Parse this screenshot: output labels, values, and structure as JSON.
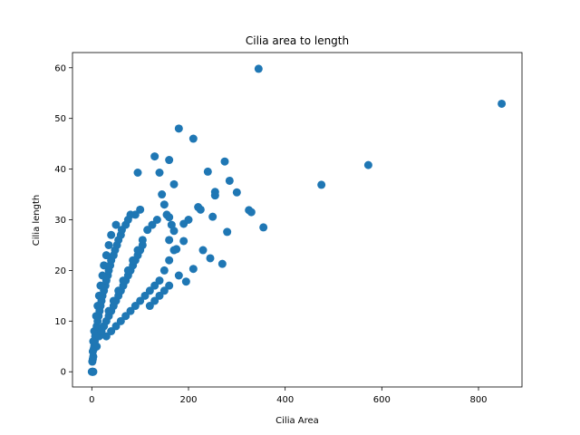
{
  "chart_data": {
    "type": "scatter",
    "title": "Cilia area to length",
    "xlabel": "Cilia Area",
    "ylabel": "Cilia length",
    "xlim": [
      -40,
      890
    ],
    "ylim": [
      -3,
      63
    ],
    "xticks": [
      0,
      200,
      400,
      600,
      800
    ],
    "yticks": [
      0,
      10,
      20,
      30,
      40,
      50,
      60
    ],
    "grid": false,
    "legend": "none",
    "marker_color": "#1f77b4",
    "series": [
      {
        "points": [
          [
            0,
            0
          ],
          [
            1,
            0
          ],
          [
            2,
            0
          ],
          [
            3,
            0
          ],
          [
            1,
            2
          ],
          [
            2,
            2.5
          ],
          [
            3,
            3
          ],
          [
            2,
            4
          ],
          [
            4,
            4.5
          ],
          [
            5,
            5
          ],
          [
            3,
            6
          ],
          [
            6,
            6
          ],
          [
            7,
            7
          ],
          [
            5,
            8
          ],
          [
            8,
            8
          ],
          [
            10,
            9
          ],
          [
            12,
            10
          ],
          [
            9,
            11
          ],
          [
            14,
            11
          ],
          [
            16,
            12
          ],
          [
            12,
            13
          ],
          [
            18,
            13
          ],
          [
            20,
            14
          ],
          [
            15,
            15
          ],
          [
            22,
            15
          ],
          [
            25,
            16
          ],
          [
            18,
            17
          ],
          [
            28,
            17
          ],
          [
            30,
            18
          ],
          [
            22,
            19
          ],
          [
            33,
            19
          ],
          [
            35,
            20
          ],
          [
            25,
            21
          ],
          [
            38,
            21
          ],
          [
            40,
            22
          ],
          [
            30,
            23
          ],
          [
            45,
            23
          ],
          [
            48,
            24
          ],
          [
            35,
            25
          ],
          [
            52,
            25
          ],
          [
            55,
            26
          ],
          [
            40,
            27
          ],
          [
            60,
            27
          ],
          [
            62,
            28
          ],
          [
            50,
            29
          ],
          [
            70,
            29
          ],
          [
            75,
            30
          ],
          [
            80,
            31
          ],
          [
            90,
            31
          ],
          [
            100,
            32
          ],
          [
            10,
            5
          ],
          [
            15,
            7
          ],
          [
            20,
            8
          ],
          [
            25,
            9
          ],
          [
            30,
            10
          ],
          [
            35,
            11
          ],
          [
            40,
            12
          ],
          [
            45,
            13
          ],
          [
            50,
            14
          ],
          [
            55,
            15
          ],
          [
            60,
            16
          ],
          [
            65,
            17
          ],
          [
            70,
            18
          ],
          [
            75,
            19
          ],
          [
            80,
            20
          ],
          [
            85,
            21
          ],
          [
            90,
            22
          ],
          [
            95,
            23
          ],
          [
            100,
            24
          ],
          [
            105,
            25
          ],
          [
            30,
            7
          ],
          [
            40,
            8
          ],
          [
            50,
            9
          ],
          [
            60,
            10
          ],
          [
            70,
            11
          ],
          [
            80,
            12
          ],
          [
            90,
            13
          ],
          [
            100,
            14
          ],
          [
            110,
            15
          ],
          [
            120,
            16
          ],
          [
            130,
            17
          ],
          [
            140,
            18
          ],
          [
            150,
            20
          ],
          [
            160,
            22
          ],
          [
            170,
            24
          ],
          [
            35,
            12
          ],
          [
            45,
            14
          ],
          [
            55,
            16
          ],
          [
            65,
            18
          ],
          [
            75,
            20
          ],
          [
            85,
            22
          ],
          [
            95,
            24
          ],
          [
            105,
            26
          ],
          [
            115,
            28
          ],
          [
            125,
            29
          ],
          [
            135,
            30
          ],
          [
            95,
            39.3
          ],
          [
            130,
            42.5
          ],
          [
            140,
            39.3
          ],
          [
            160,
            41.8
          ],
          [
            180,
            48
          ],
          [
            210,
            46
          ],
          [
            170,
            37
          ],
          [
            145,
            35
          ],
          [
            150,
            33
          ],
          [
            155,
            31
          ],
          [
            160,
            30.5
          ],
          [
            165,
            29
          ],
          [
            170,
            27.8
          ],
          [
            160,
            26
          ],
          [
            175,
            24.2
          ],
          [
            190,
            29.2
          ],
          [
            190,
            25.8
          ],
          [
            200,
            30
          ],
          [
            220,
            32.5
          ],
          [
            225,
            32
          ],
          [
            240,
            39.5
          ],
          [
            255,
            35.5
          ],
          [
            255,
            34.8
          ],
          [
            250,
            30.6
          ],
          [
            275,
            41.5
          ],
          [
            285,
            37.7
          ],
          [
            300,
            35.4
          ],
          [
            325,
            31.9
          ],
          [
            330,
            31.5
          ],
          [
            355,
            28.5
          ],
          [
            280,
            27.6
          ],
          [
            230,
            24
          ],
          [
            245,
            22.4
          ],
          [
            270,
            21.3
          ],
          [
            210,
            20.3
          ],
          [
            195,
            17.8
          ],
          [
            180,
            19
          ],
          [
            160,
            17
          ],
          [
            150,
            16
          ],
          [
            140,
            15
          ],
          [
            130,
            14
          ],
          [
            120,
            13
          ],
          [
            345,
            59.8
          ],
          [
            475,
            36.9
          ],
          [
            572,
            40.8
          ],
          [
            848,
            52.9
          ]
        ]
      }
    ]
  }
}
